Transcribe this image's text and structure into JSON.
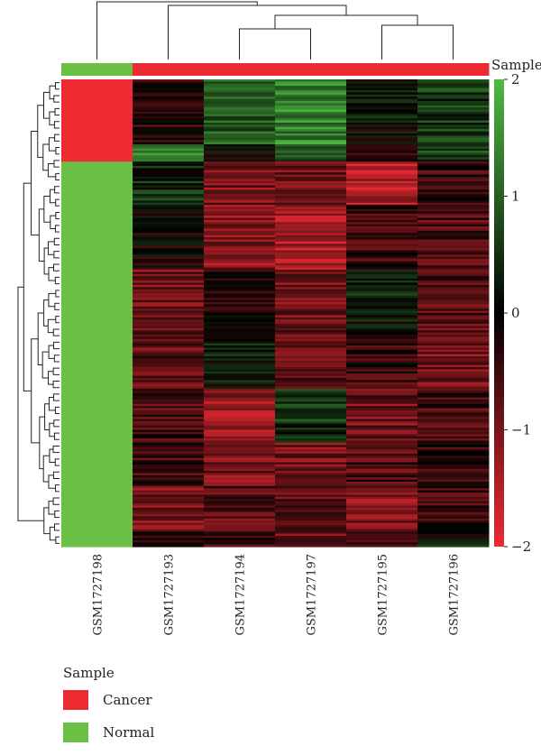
{
  "chart_data": {
    "type": "heatmap",
    "columns": [
      "GSM1727198",
      "GSM1727193",
      "GSM1727194",
      "GSM1727197",
      "GSM1727195",
      "GSM1727196"
    ],
    "column_groups": [
      "Normal",
      "Cancer",
      "Cancer",
      "Cancer",
      "Cancer",
      "Cancer"
    ],
    "annotation_label": "Sample",
    "color_scale": {
      "min": -2,
      "max": 2,
      "ticks": [
        2,
        1,
        0,
        -1,
        -2
      ],
      "tick_labels": [
        "2",
        "1",
        "0",
        "−1",
        "−2"
      ],
      "colors": {
        "low": "#ee2a33",
        "mid": "#000000",
        "high": "#4fbb44"
      }
    },
    "legend": {
      "title": "Sample",
      "items": [
        {
          "label": "Cancer",
          "color": "#ee2a33"
        },
        {
          "label": "Normal",
          "color": "#6abf45"
        }
      ]
    },
    "row_blocks": [
      {
        "rows": 30,
        "values": [
          -2.0,
          -0.3,
          0.9,
          1.4,
          0.1,
          0.6
        ]
      },
      {
        "rows": 8,
        "values": [
          -2.0,
          1.3,
          -0.1,
          0.6,
          -0.3,
          0.7
        ]
      },
      {
        "rows": 20,
        "values": [
          2.0,
          0.4,
          -1.0,
          -0.9,
          -1.5,
          -0.5
        ]
      },
      {
        "rows": 30,
        "values": [
          2.0,
          -0.1,
          -1.1,
          -1.4,
          -0.5,
          -0.6
        ]
      },
      {
        "rows": 30,
        "values": [
          2.0,
          -0.9,
          -0.3,
          -0.9,
          0.3,
          -0.7
        ]
      },
      {
        "rows": 25,
        "values": [
          2.0,
          -0.8,
          0.2,
          -0.7,
          -0.4,
          -1.0
        ]
      },
      {
        "rows": 25,
        "values": [
          2.0,
          -0.6,
          -1.2,
          0.5,
          -0.9,
          -0.6
        ]
      },
      {
        "rows": 20,
        "values": [
          2.0,
          -0.5,
          -1.0,
          -0.9,
          -0.6,
          -0.3
        ]
      },
      {
        "rows": 20,
        "values": [
          2.0,
          -1.0,
          -0.7,
          -0.8,
          -1.1,
          -0.5
        ]
      },
      {
        "rows": 8,
        "values": [
          2.0,
          -0.6,
          -0.5,
          -0.8,
          -0.6,
          0.2
        ]
      }
    ]
  },
  "colors": {
    "normal_bar": "#6abf45",
    "cancer_bar": "#ee2a33",
    "dendrogram": "#222222"
  }
}
